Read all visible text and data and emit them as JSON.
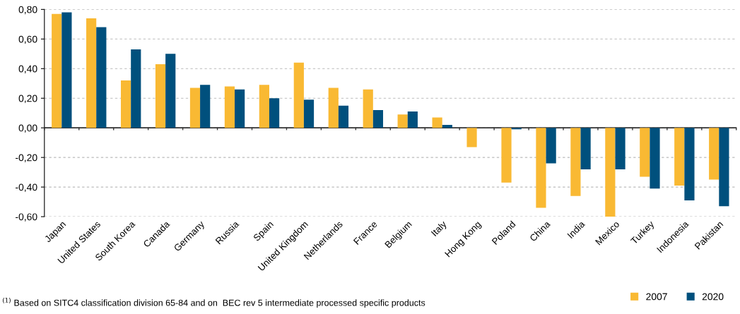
{
  "chart_data": {
    "type": "bar",
    "categories": [
      "Japan",
      "United States",
      "South Korea",
      "Canada",
      "Germany",
      "Russia",
      "Spain",
      "United Kingdom",
      "Netherlands",
      "France",
      "Belgium",
      "Italy",
      "Hong Kong",
      "Poland",
      "China",
      "India",
      "Mexico",
      "Turkey",
      "Indonesia",
      "Pakistan"
    ],
    "series": [
      {
        "name": "2007",
        "color": "#f9b933",
        "values": [
          0.77,
          0.74,
          0.32,
          0.43,
          0.27,
          0.28,
          0.29,
          0.44,
          0.27,
          0.26,
          0.09,
          0.07,
          -0.13,
          -0.37,
          -0.54,
          -0.46,
          -0.6,
          -0.33,
          -0.39,
          -0.35
        ]
      },
      {
        "name": "2020",
        "color": "#00507d",
        "values": [
          0.78,
          0.68,
          0.53,
          0.5,
          0.29,
          0.26,
          0.2,
          0.19,
          0.15,
          0.12,
          0.11,
          0.02,
          null,
          -0.01,
          -0.24,
          -0.28,
          -0.28,
          -0.41,
          -0.49,
          -0.53
        ]
      }
    ],
    "ylim": [
      -0.6,
      0.8
    ],
    "yticks": [
      {
        "value": -0.6,
        "label": "-0,60"
      },
      {
        "value": -0.4,
        "label": "-0,40"
      },
      {
        "value": -0.2,
        "label": "-0,20"
      },
      {
        "value": 0,
        "label": "0,00"
      },
      {
        "value": 0.2,
        "label": "0,20"
      },
      {
        "value": 0.4,
        "label": "0,40"
      },
      {
        "value": 0.6,
        "label": "0,60"
      },
      {
        "value": 0.8,
        "label": "0,80"
      }
    ],
    "grid": "y",
    "legend": "bottom right",
    "annotations": [
      "$^{(1)}$ Based on SITC4 classification division 65-84 and on  BEC rev 5 intermediate processed specific products"
    ]
  }
}
